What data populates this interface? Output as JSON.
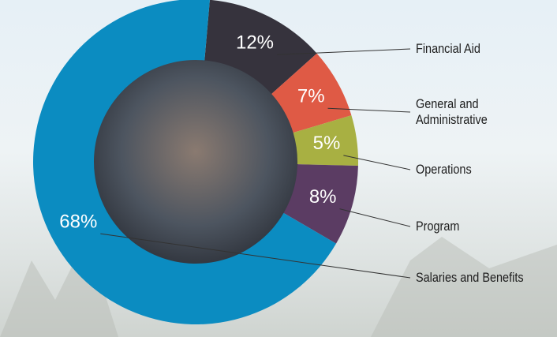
{
  "chart_data": {
    "type": "pie",
    "donut": true,
    "categories": [
      "Financial Aid",
      "General and Administrative",
      "Operations",
      "Program",
      "Salaries and Benefits"
    ],
    "values": [
      12,
      7,
      5,
      8,
      68
    ],
    "value_labels": [
      "12%",
      "7%",
      "5%",
      "8%",
      "68%"
    ],
    "colors": [
      "#36333d",
      "#df5a45",
      "#a8b042",
      "#5b3c63",
      "#0b8cc1"
    ]
  }
}
